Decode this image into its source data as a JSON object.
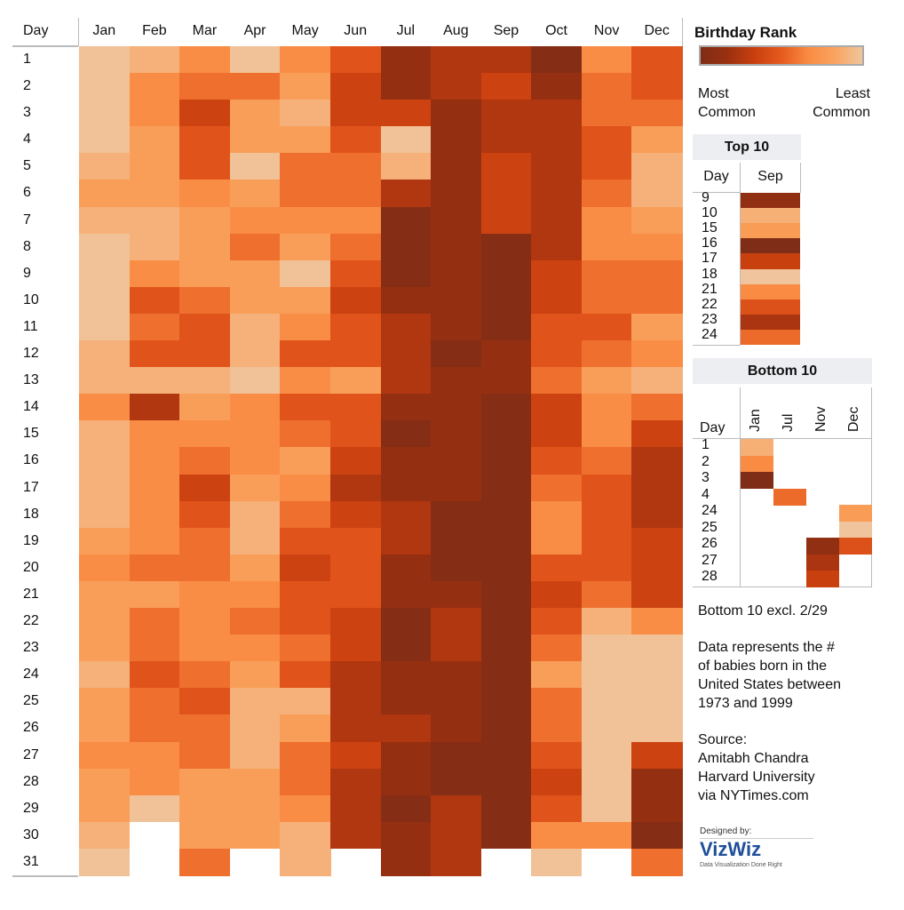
{
  "chart_data": {
    "type": "heatmap",
    "row_header": "Day",
    "columns": [
      "Jan",
      "Feb",
      "Mar",
      "Apr",
      "May",
      "Jun",
      "Jul",
      "Aug",
      "Sep",
      "Oct",
      "Nov",
      "Dec"
    ],
    "rows": [
      "1",
      "2",
      "3",
      "4",
      "5",
      "6",
      "7",
      "8",
      "9",
      "10",
      "11",
      "12",
      "13",
      "14",
      "15",
      "16",
      "17",
      "18",
      "19",
      "20",
      "21",
      "22",
      "23",
      "24",
      "25",
      "26",
      "27",
      "28",
      "29",
      "30",
      "31"
    ],
    "value_meaning": "Birthday Rank (1 = most common, 366 = least common), approximate",
    "value_range": [
      1,
      366
    ],
    "values": [
      [
        360,
        330,
        250,
        360,
        250,
        170,
        50,
        90,
        90,
        15,
        250,
        170
      ],
      [
        360,
        250,
        210,
        210,
        290,
        130,
        50,
        90,
        130,
        50,
        210,
        170
      ],
      [
        360,
        250,
        130,
        290,
        330,
        130,
        130,
        50,
        90,
        90,
        210,
        210
      ],
      [
        360,
        290,
        170,
        290,
        290,
        170,
        360,
        50,
        90,
        90,
        170,
        290
      ],
      [
        330,
        290,
        170,
        360,
        210,
        210,
        330,
        50,
        130,
        90,
        170,
        330
      ],
      [
        290,
        290,
        250,
        290,
        210,
        210,
        90,
        50,
        130,
        90,
        210,
        330
      ],
      [
        330,
        330,
        290,
        250,
        250,
        250,
        15,
        50,
        130,
        90,
        250,
        290
      ],
      [
        360,
        330,
        290,
        210,
        290,
        210,
        15,
        50,
        15,
        90,
        250,
        250
      ],
      [
        360,
        250,
        290,
        290,
        360,
        170,
        15,
        50,
        15,
        130,
        210,
        210
      ],
      [
        360,
        170,
        210,
        290,
        290,
        130,
        50,
        50,
        15,
        130,
        210,
        210
      ],
      [
        360,
        210,
        170,
        330,
        250,
        170,
        90,
        50,
        15,
        170,
        170,
        290
      ],
      [
        330,
        170,
        170,
        330,
        170,
        170,
        90,
        15,
        50,
        170,
        210,
        250
      ],
      [
        330,
        330,
        330,
        360,
        250,
        290,
        90,
        50,
        50,
        210,
        290,
        330
      ],
      [
        250,
        90,
        290,
        250,
        170,
        170,
        50,
        50,
        15,
        130,
        250,
        210
      ],
      [
        330,
        250,
        250,
        250,
        210,
        170,
        15,
        50,
        15,
        130,
        250,
        130
      ],
      [
        330,
        250,
        210,
        250,
        290,
        130,
        50,
        50,
        15,
        170,
        210,
        90
      ],
      [
        330,
        250,
        130,
        290,
        250,
        90,
        50,
        50,
        15,
        210,
        170,
        90
      ],
      [
        330,
        250,
        170,
        330,
        210,
        130,
        90,
        15,
        15,
        250,
        170,
        90
      ],
      [
        290,
        250,
        210,
        330,
        170,
        170,
        90,
        15,
        15,
        250,
        170,
        130
      ],
      [
        250,
        210,
        210,
        290,
        130,
        170,
        50,
        15,
        15,
        170,
        170,
        130
      ],
      [
        290,
        290,
        250,
        250,
        170,
        170,
        50,
        50,
        15,
        130,
        210,
        130
      ],
      [
        290,
        210,
        250,
        210,
        170,
        130,
        15,
        90,
        15,
        170,
        330,
        250
      ],
      [
        290,
        210,
        250,
        250,
        210,
        130,
        15,
        90,
        15,
        210,
        360,
        360
      ],
      [
        330,
        170,
        210,
        290,
        170,
        90,
        50,
        50,
        15,
        290,
        360,
        360
      ],
      [
        290,
        210,
        170,
        330,
        330,
        90,
        50,
        50,
        15,
        210,
        360,
        360
      ],
      [
        290,
        210,
        210,
        330,
        290,
        90,
        90,
        50,
        15,
        210,
        360,
        360
      ],
      [
        250,
        250,
        210,
        330,
        210,
        130,
        50,
        15,
        15,
        170,
        360,
        130
      ],
      [
        290,
        250,
        290,
        290,
        210,
        90,
        50,
        15,
        15,
        130,
        360,
        50
      ],
      [
        290,
        360,
        290,
        290,
        250,
        90,
        15,
        90,
        15,
        170,
        360,
        50
      ],
      [
        330,
        null,
        290,
        290,
        330,
        90,
        50,
        90,
        15,
        250,
        250,
        15
      ],
      [
        360,
        null,
        210,
        null,
        330,
        null,
        50,
        90,
        null,
        360,
        null,
        210
      ]
    ],
    "color_scale": [
      "#7f2d16",
      "#9a3010",
      "#c9400f",
      "#e65a1e",
      "#f98b42",
      "#f9a460",
      "#f0c59d"
    ]
  },
  "legend": {
    "title": "Birthday Rank",
    "most_line1": "Most",
    "most_line2": "Common",
    "least_line1": "Least",
    "least_line2": "Common"
  },
  "top10": {
    "title": "Top 10",
    "day_header": "Day",
    "month_header": "Sep",
    "items": [
      {
        "day": "9",
        "rank": 2
      },
      {
        "day": "10",
        "rank": 9
      },
      {
        "day": "15",
        "rank": 8
      },
      {
        "day": "16",
        "rank": 1
      },
      {
        "day": "17",
        "rank": 4
      },
      {
        "day": "18",
        "rank": 10
      },
      {
        "day": "21",
        "rank": 7
      },
      {
        "day": "22",
        "rank": 5
      },
      {
        "day": "23",
        "rank": 3
      },
      {
        "day": "24",
        "rank": 6
      }
    ]
  },
  "bottom10": {
    "title": "Bottom 10",
    "day_header": "Day",
    "months": [
      "Jan",
      "Jul",
      "Nov",
      "Dec"
    ],
    "days": [
      "1",
      "2",
      "3",
      "4",
      "24",
      "25",
      "26",
      "27",
      "28"
    ],
    "items": [
      {
        "day": "1",
        "month": "Jan",
        "rank": 365
      },
      {
        "day": "2",
        "month": "Jan",
        "rank": 363
      },
      {
        "day": "3",
        "month": "Jan",
        "rank": 357
      },
      {
        "day": "4",
        "month": "Jul",
        "rank": 362
      },
      {
        "day": "24",
        "month": "Dec",
        "rank": 364
      },
      {
        "day": "25",
        "month": "Dec",
        "rank": 366
      },
      {
        "day": "26",
        "month": "Nov",
        "rank": 358
      },
      {
        "day": "26",
        "month": "Dec",
        "rank": 361
      },
      {
        "day": "27",
        "month": "Nov",
        "rank": 359
      },
      {
        "day": "28",
        "month": "Nov",
        "rank": 360
      }
    ],
    "note": "Bottom 10 excl. 2/29"
  },
  "description": [
    "Data represents the #",
    "of babies born in the",
    "United States between",
    "1973 and 1999"
  ],
  "source": [
    "Source:",
    "Amitabh Chandra",
    "Harvard University",
    "via NYTimes.com"
  ],
  "logo": {
    "designed_by": "Designed by:",
    "name": "VizWiz",
    "tagline": "Data Visualization Done Right",
    "color": "#1f4f9a"
  }
}
